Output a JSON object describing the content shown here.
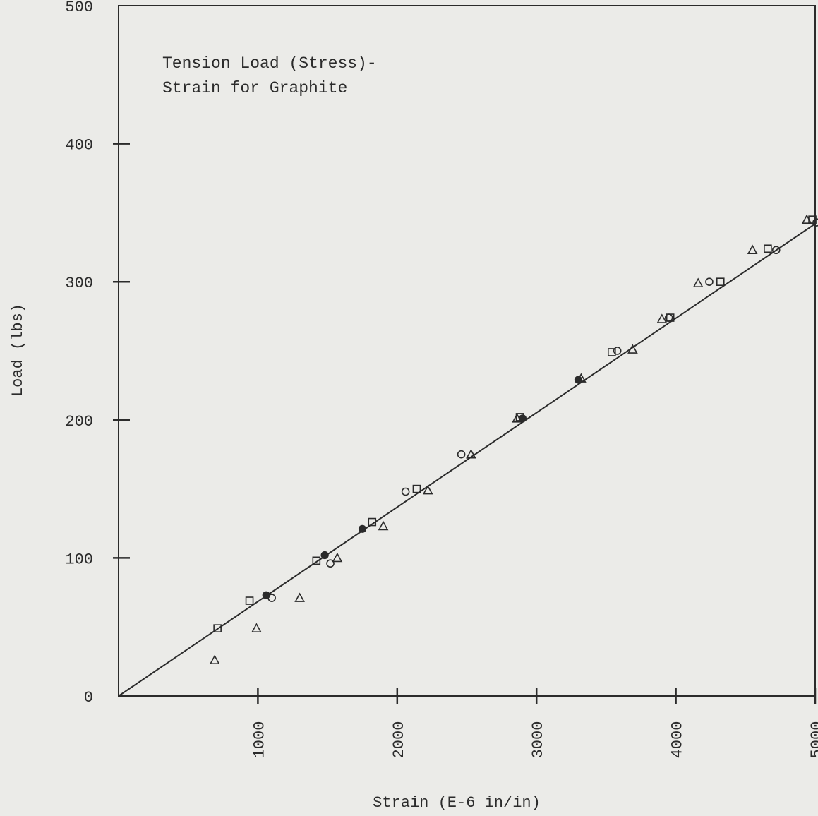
{
  "chart_data": {
    "type": "scatter",
    "title": "Tension Load (Stress)-",
    "subtitle": "Strain for Graphite",
    "xlabel": "Strain (E-6 in/in)",
    "ylabel": "Load (lbs)",
    "xlim": [
      0,
      5000
    ],
    "ylim": [
      0,
      500
    ],
    "x_ticks": [
      1000,
      2000,
      3000,
      4000,
      5000
    ],
    "y_ticks": [
      0,
      100,
      200,
      300,
      400,
      500
    ],
    "grid": false,
    "fit_line": {
      "x": [
        0,
        5000
      ],
      "y": [
        0,
        342
      ]
    },
    "series": [
      {
        "marker": "triangle",
        "points": [
          [
            690,
            26
          ],
          [
            990,
            49
          ],
          [
            1300,
            71
          ],
          [
            1570,
            100
          ],
          [
            1900,
            123
          ],
          [
            2220,
            149
          ],
          [
            2530,
            175
          ],
          [
            2860,
            201
          ],
          [
            3320,
            230
          ],
          [
            3690,
            251
          ],
          [
            3900,
            273
          ],
          [
            4160,
            299
          ],
          [
            4550,
            323
          ],
          [
            4940,
            345
          ]
        ]
      },
      {
        "marker": "circle",
        "points": [
          [
            1100,
            71
          ],
          [
            1520,
            96
          ],
          [
            2060,
            148
          ],
          [
            2460,
            175
          ],
          [
            3580,
            250
          ],
          [
            3950,
            274
          ],
          [
            4240,
            300
          ],
          [
            4720,
            323
          ],
          [
            5010,
            343
          ]
        ]
      },
      {
        "marker": "square",
        "points": [
          [
            710,
            49
          ],
          [
            940,
            69
          ],
          [
            1420,
            98
          ],
          [
            1820,
            126
          ],
          [
            2140,
            150
          ],
          [
            2880,
            202
          ],
          [
            3540,
            249
          ],
          [
            3960,
            274
          ],
          [
            4320,
            300
          ],
          [
            4660,
            324
          ],
          [
            4980,
            345
          ]
        ]
      },
      {
        "marker": "filled-circle",
        "points": [
          [
            1750,
            121
          ],
          [
            1060,
            73
          ],
          [
            1480,
            102
          ],
          [
            2900,
            201
          ],
          [
            3300,
            229
          ]
        ]
      }
    ]
  }
}
